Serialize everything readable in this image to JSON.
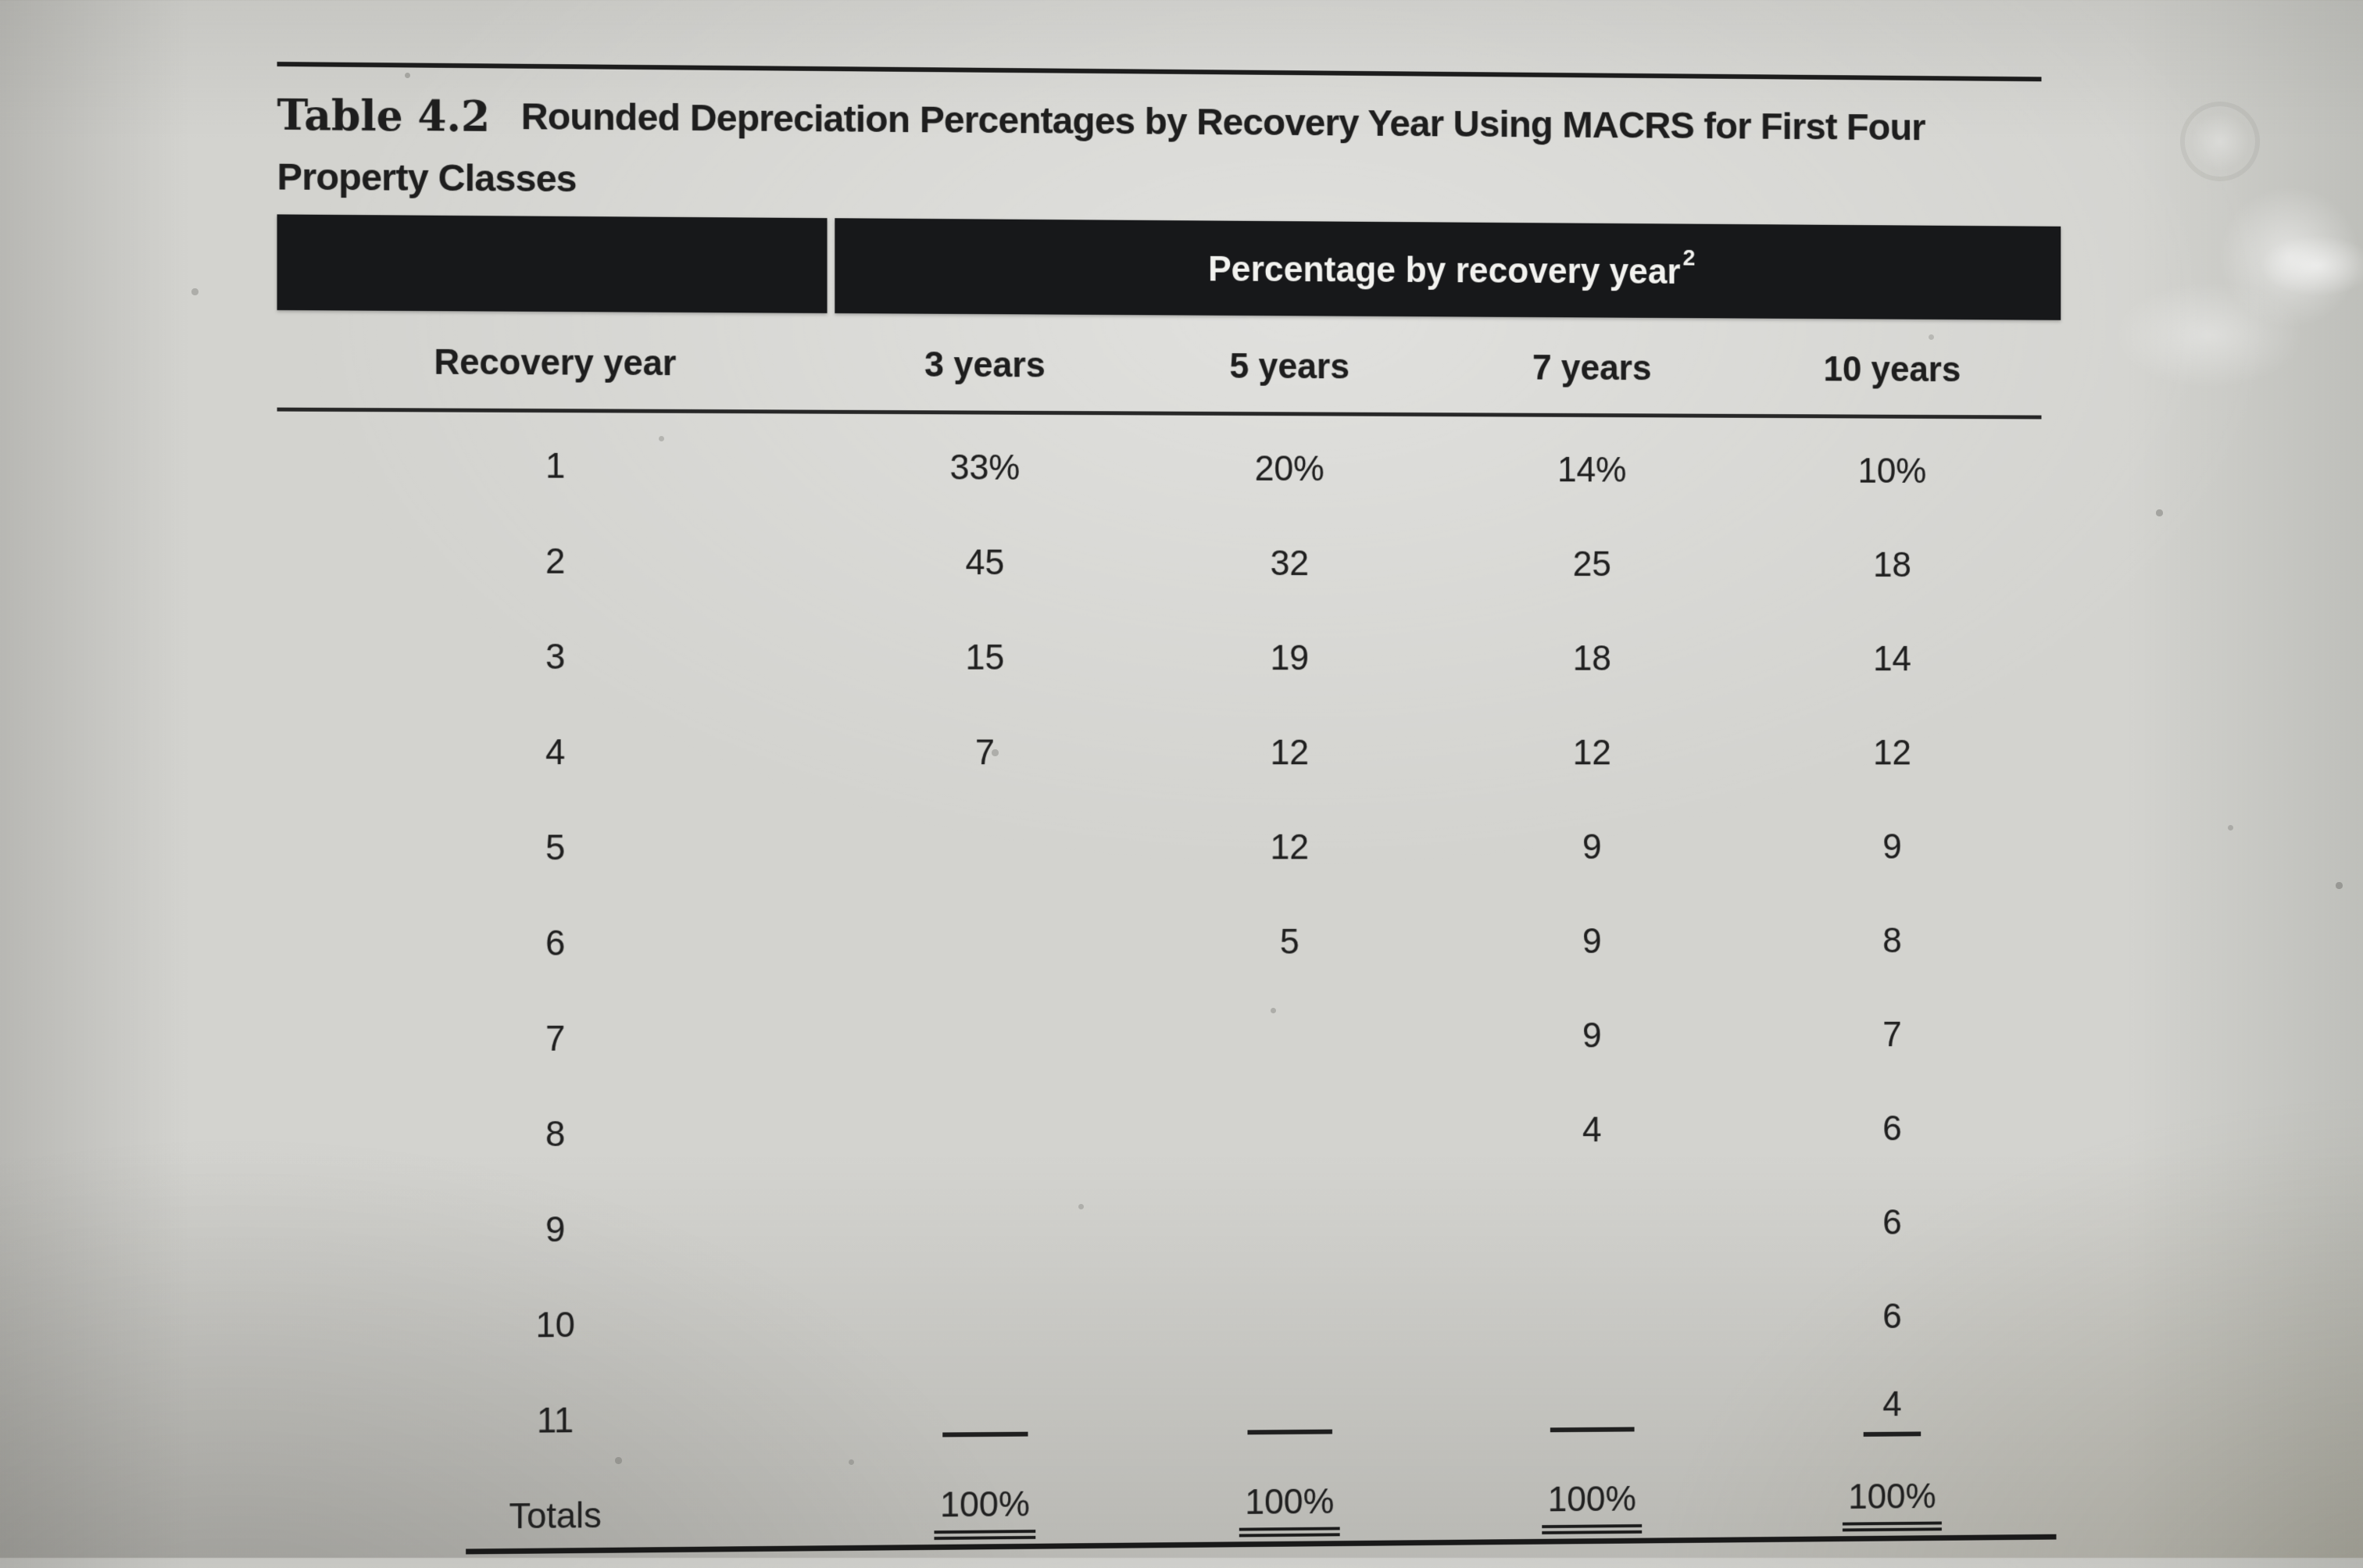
{
  "page": {
    "title": {
      "number": "Table 4.2",
      "caption_line1": "Rounded Depreciation Percentages by Recovery Year Using MACRS for First Four",
      "caption_line2": "Property Classes"
    }
  },
  "table": {
    "band": {
      "label": "Percentage by recovery year",
      "footnote_marker": "2"
    },
    "columns": [
      "Recovery year",
      "3 years",
      "5 years",
      "7 years",
      "10 years"
    ],
    "rows": [
      {
        "year": "1",
        "v3": "33%",
        "v5": "20%",
        "v7": "14%",
        "v10": "10%"
      },
      {
        "year": "2",
        "v3": "45",
        "v5": "32",
        "v7": "25",
        "v10": "18"
      },
      {
        "year": "3",
        "v3": "15",
        "v5": "19",
        "v7": "18",
        "v10": "14"
      },
      {
        "year": "4",
        "v3": "7",
        "v5": "12",
        "v7": "12",
        "v10": "12"
      },
      {
        "year": "5",
        "v3": "",
        "v5": "12",
        "v7": "9",
        "v10": "9"
      },
      {
        "year": "6",
        "v3": "",
        "v5": "5",
        "v7": "9",
        "v10": "8"
      },
      {
        "year": "7",
        "v3": "",
        "v5": "",
        "v7": "9",
        "v10": "7"
      },
      {
        "year": "8",
        "v3": "",
        "v5": "",
        "v7": "4",
        "v10": "6"
      },
      {
        "year": "9",
        "v3": "",
        "v5": "",
        "v7": "",
        "v10": "6"
      },
      {
        "year": "10",
        "v3": "",
        "v5": "",
        "v7": "",
        "v10": "6"
      },
      {
        "year": "11",
        "v3": "",
        "v5": "",
        "v7": "",
        "v10": "4"
      }
    ],
    "totals": {
      "label": "Totals",
      "v3": "100%",
      "v5": "100%",
      "v7": "100%",
      "v10": "100%"
    }
  },
  "colors": {
    "band_background": "#17181a",
    "band_text": "#f2f2ef",
    "body_text": "#1e1e1e",
    "page_background": "#d3d3cf"
  }
}
